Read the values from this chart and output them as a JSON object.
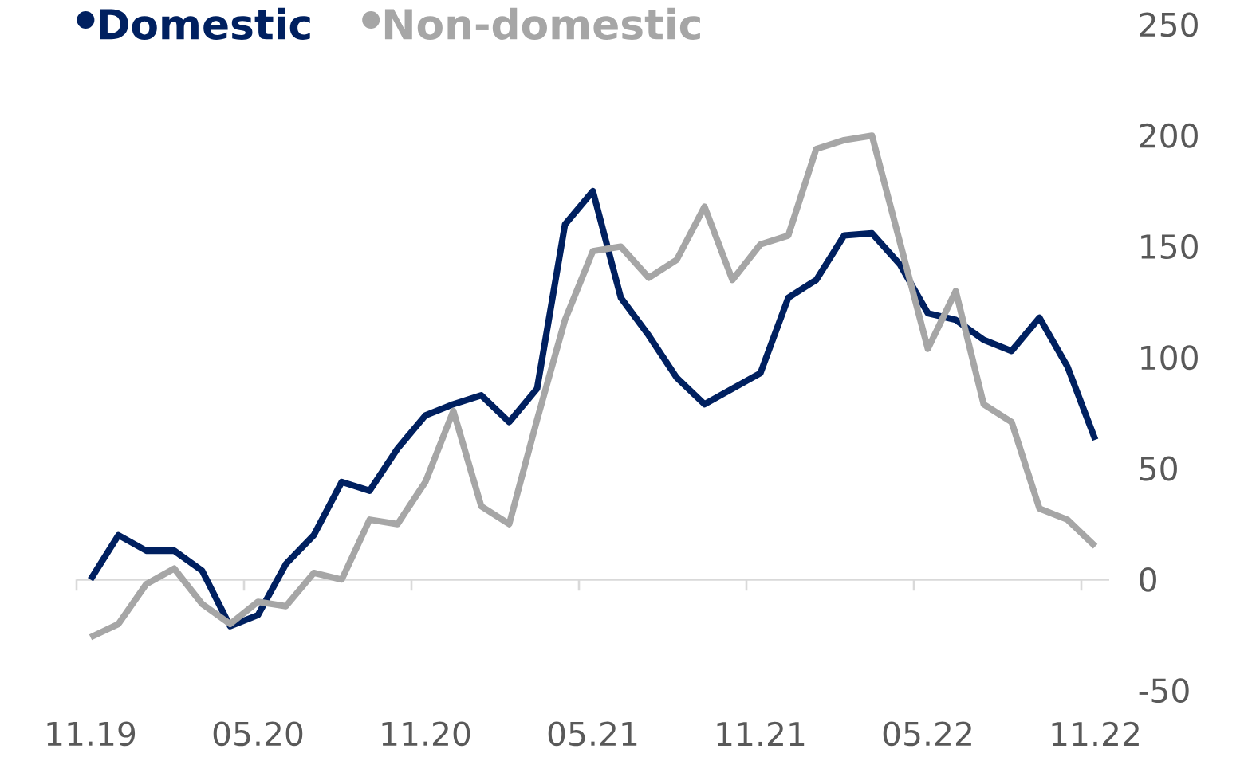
{
  "chart_data": {
    "type": "line",
    "categories": [
      "11.19",
      null,
      null,
      null,
      null,
      null,
      "05.20",
      null,
      null,
      null,
      null,
      null,
      "11.20",
      null,
      null,
      null,
      null,
      null,
      "05.21",
      null,
      null,
      null,
      null,
      null,
      "11.21",
      null,
      null,
      null,
      null,
      null,
      "05.22",
      null,
      null,
      null,
      null,
      null,
      "11.22"
    ],
    "series": [
      {
        "name": "Domestic",
        "color": "#002060",
        "values": [
          0,
          20,
          13,
          13,
          4,
          -21,
          -16,
          7,
          20,
          44,
          40,
          59,
          74,
          79,
          83,
          71,
          86,
          160,
          175,
          127,
          110,
          91,
          79,
          86,
          93,
          127,
          135,
          155,
          156,
          142,
          120,
          117,
          108,
          103,
          118,
          96,
          63
        ]
      },
      {
        "name": "Non-domestic",
        "color": "#a6a6a6",
        "values": [
          -26,
          -20,
          -2,
          5,
          -11,
          -20,
          -10,
          -12,
          3,
          0,
          27,
          25,
          44,
          76,
          33,
          25,
          72,
          117,
          148,
          150,
          136,
          144,
          168,
          135,
          151,
          155,
          194,
          198,
          200,
          152,
          104,
          130,
          79,
          71,
          32,
          27,
          15
        ]
      }
    ],
    "ylim": [
      -50,
      250
    ],
    "yticks": [
      -50,
      0,
      50,
      100,
      150,
      200,
      250
    ],
    "legend": "top left",
    "marker": "none",
    "line_style": "solid"
  }
}
